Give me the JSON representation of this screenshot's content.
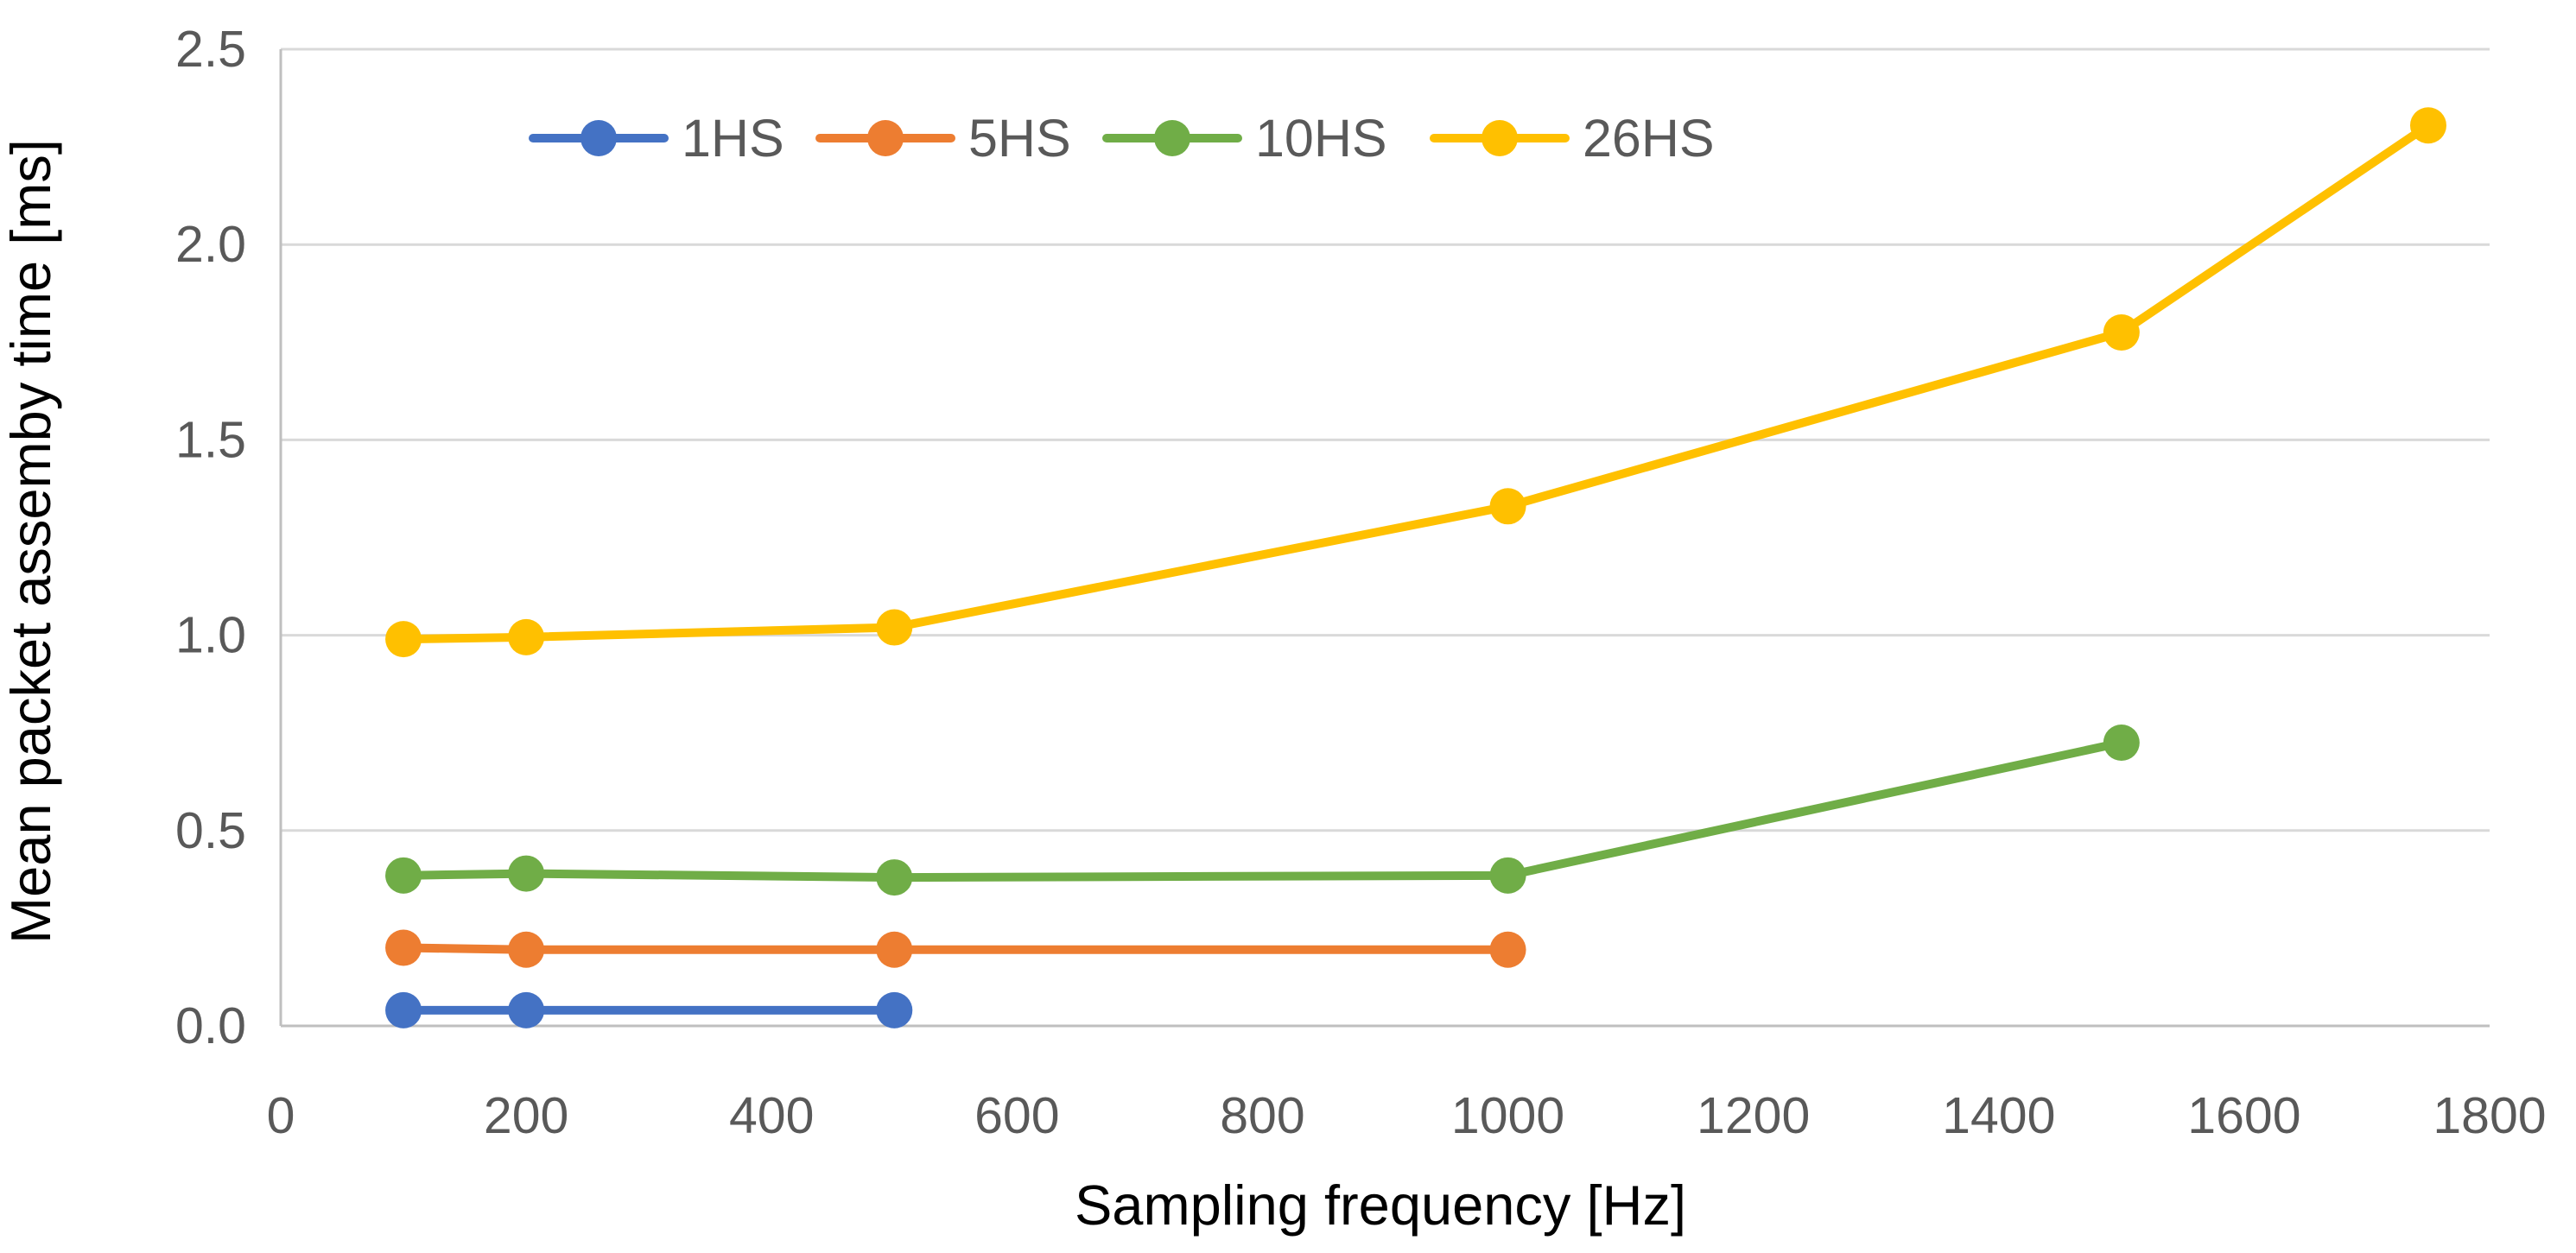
{
  "chart_data": {
    "type": "line",
    "title": "",
    "xlabel": "Sampling frequency [Hz]",
    "ylabel": "Mean packet assemby time [ms]",
    "xlim": [
      0,
      1800
    ],
    "ylim": [
      0,
      2.5
    ],
    "x_ticks": [
      "0",
      "200",
      "400",
      "600",
      "800",
      "1000",
      "1200",
      "1400",
      "1600",
      "1800"
    ],
    "y_ticks": [
      "0.0",
      "0.5",
      "1.0",
      "1.5",
      "2.0",
      "2.5"
    ],
    "grid": "horizontal",
    "legend_position": "top",
    "series": [
      {
        "name": "1HS",
        "color": "#4472C4",
        "x": [
          100,
          200,
          500
        ],
        "y": [
          0.04,
          0.04,
          0.04
        ]
      },
      {
        "name": "5HS",
        "color": "#ED7D31",
        "x": [
          100,
          200,
          500,
          1000
        ],
        "y": [
          0.2,
          0.195,
          0.195,
          0.195
        ]
      },
      {
        "name": "10HS",
        "color": "#70AD47",
        "x": [
          100,
          200,
          500,
          1000,
          1500
        ],
        "y": [
          0.385,
          0.39,
          0.38,
          0.385,
          0.725
        ]
      },
      {
        "name": "26HS",
        "color": "#FFC000",
        "x": [
          100,
          200,
          500,
          1000,
          1500,
          1750
        ],
        "y": [
          0.99,
          0.995,
          1.02,
          1.33,
          1.775,
          2.305
        ]
      }
    ]
  }
}
